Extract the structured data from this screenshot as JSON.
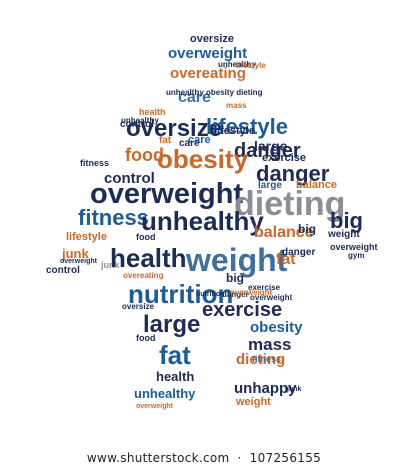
{
  "image": {
    "subject": "word-cloud",
    "colors": {
      "navy": "#1d2b55",
      "blue": "#1e5c99",
      "steel": "#3e6f9e",
      "orange": "#c96a2b",
      "grey": "#8a8f96",
      "lightgrey": "#b0b5bb"
    },
    "words": [
      {
        "t": "oversize",
        "c": "navy"
      },
      {
        "t": "overweight",
        "c": "blue"
      },
      {
        "t": "unhealthy",
        "c": "navy"
      },
      {
        "t": "lifestyle",
        "c": "orange"
      },
      {
        "t": "overeating",
        "c": "orange"
      },
      {
        "t": "care",
        "c": "steel"
      },
      {
        "t": "unhealthy obesity dieting",
        "c": "navy"
      },
      {
        "t": "mass",
        "c": "orange"
      },
      {
        "t": "control",
        "c": "navy"
      },
      {
        "t": "health",
        "c": "orange"
      },
      {
        "t": "unhealthy",
        "c": "navy"
      },
      {
        "t": "junk",
        "c": "grey"
      },
      {
        "t": "oversize",
        "c": "navy"
      },
      {
        "t": "lifestyle",
        "c": "blue"
      },
      {
        "t": "danger",
        "c": "navy"
      },
      {
        "t": "fat",
        "c": "orange"
      },
      {
        "t": "care",
        "c": "navy"
      },
      {
        "t": "large",
        "c": "navy"
      },
      {
        "t": "food",
        "c": "orange"
      },
      {
        "t": "obesity",
        "c": "orange"
      },
      {
        "t": "exercise",
        "c": "navy"
      },
      {
        "t": "control",
        "c": "navy"
      },
      {
        "t": "danger",
        "c": "navy"
      },
      {
        "t": "large",
        "c": "blue"
      },
      {
        "t": "balance",
        "c": "orange"
      },
      {
        "t": "overweight",
        "c": "navy"
      },
      {
        "t": "dieting",
        "c": "grey"
      },
      {
        "t": "fitness",
        "c": "blue"
      },
      {
        "t": "unhealthy",
        "c": "navy"
      },
      {
        "t": "big",
        "c": "navy"
      },
      {
        "t": "balance",
        "c": "orange"
      },
      {
        "t": "lifestyle",
        "c": "orange"
      },
      {
        "t": "junk",
        "c": "orange"
      },
      {
        "t": "health",
        "c": "navy"
      },
      {
        "t": "weight",
        "c": "steel"
      },
      {
        "t": "fat",
        "c": "orange"
      },
      {
        "t": "overweight",
        "c": "navy"
      },
      {
        "t": "control",
        "c": "navy"
      },
      {
        "t": "nutrition",
        "c": "blue"
      },
      {
        "t": "big",
        "c": "navy"
      },
      {
        "t": "large",
        "c": "navy"
      },
      {
        "t": "exercise",
        "c": "navy"
      },
      {
        "t": "obesity",
        "c": "blue"
      },
      {
        "t": "food",
        "c": "navy"
      },
      {
        "t": "fat",
        "c": "blue"
      },
      {
        "t": "mass",
        "c": "navy"
      },
      {
        "t": "dieting",
        "c": "orange"
      },
      {
        "t": "health",
        "c": "navy"
      },
      {
        "t": "unhappy",
        "c": "navy"
      },
      {
        "t": "unhealthy",
        "c": "blue"
      },
      {
        "t": "weight",
        "c": "orange"
      },
      {
        "t": "junk",
        "c": "navy"
      },
      {
        "t": "overweight",
        "c": "orange"
      },
      {
        "t": "nutrition",
        "c": "navy"
      },
      {
        "t": "gym",
        "c": "navy"
      },
      {
        "t": "fitness",
        "c": "steel"
      },
      {
        "t": "danger",
        "c": "navy"
      },
      {
        "t": "overeating",
        "c": "orange"
      },
      {
        "t": "exercise",
        "c": "navy"
      },
      {
        "t": "overweight",
        "c": "navy"
      },
      {
        "t": "oversize",
        "c": "navy"
      },
      {
        "t": "big",
        "c": "navy"
      },
      {
        "t": "weight",
        "c": "navy"
      },
      {
        "t": "overweight",
        "c": "navy"
      },
      {
        "t": "lifestyle",
        "c": "navy"
      },
      {
        "t": "care",
        "c": "blue"
      },
      {
        "t": "fitness",
        "c": "navy"
      },
      {
        "t": "danger",
        "c": "navy"
      },
      {
        "t": "food",
        "c": "navy"
      },
      {
        "t": "overweight",
        "c": "orange"
      }
    ]
  },
  "footer": {
    "text": "www.shutterstock.com",
    "separator": "·",
    "id": "107256155"
  }
}
